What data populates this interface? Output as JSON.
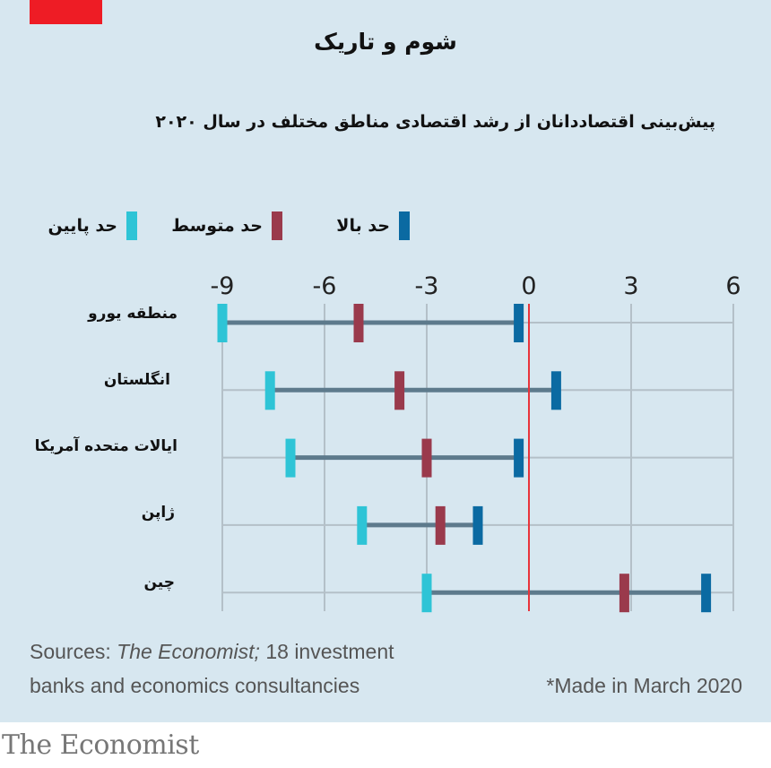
{
  "header": {
    "title": "شوم و تاریک",
    "subtitle": "پیش‌بینی اقتصاددانان از رشد اقتصادی مناطق مختلف در سال ۲۰۲۰"
  },
  "legend": [
    {
      "key": "high",
      "label": "حد بالا",
      "color": "#0b6aa2"
    },
    {
      "key": "mid",
      "label": "حد متوسط",
      "color": "#9a3a4c"
    },
    {
      "key": "low",
      "label": "حد پایین",
      "color": "#2ec4d6"
    }
  ],
  "colors": {
    "background": "#d7e7f0",
    "range_line": "#5d7a8c",
    "gridline": "#b4c0c8",
    "zero_line": "#e8343b",
    "brand_red": "#ee1c25"
  },
  "chart_data": {
    "type": "range-dot",
    "title": "شوم و تاریک",
    "subtitle": "پیش‌بینی اقتصاددانان از رشد اقتصادی مناطق مختلف در سال ۲۰۲۰",
    "xlabel": "",
    "ylabel": "",
    "xlim": [
      -9,
      6
    ],
    "xticks": [
      -9,
      -6,
      -3,
      0,
      3,
      6
    ],
    "xtick_labels": [
      "-9",
      "-6",
      "-3",
      "0",
      "3",
      "6"
    ],
    "grid": true,
    "legend_position": "top-left",
    "categories": [
      "منطقه یورو",
      "انگلستان",
      "ایالات متحده آمریکا",
      "ژاپن",
      "چین"
    ],
    "series": [
      {
        "name": "حد پایین",
        "values": [
          -9.0,
          -7.6,
          -7.0,
          -4.9,
          -3.0
        ]
      },
      {
        "name": "حد متوسط",
        "values": [
          -5.0,
          -3.8,
          -3.0,
          -2.6,
          2.8
        ]
      },
      {
        "name": "حد بالا",
        "values": [
          -0.3,
          0.8,
          -0.3,
          -1.5,
          5.2
        ]
      }
    ]
  },
  "footer": {
    "sources_prefix": "Sources: ",
    "sources_italic": "The Economist;",
    "sources_rest_line1": " 18 investment",
    "sources_line2": "banks and economics consultancies",
    "note": "*Made in March 2020",
    "brand": "The Economist"
  }
}
